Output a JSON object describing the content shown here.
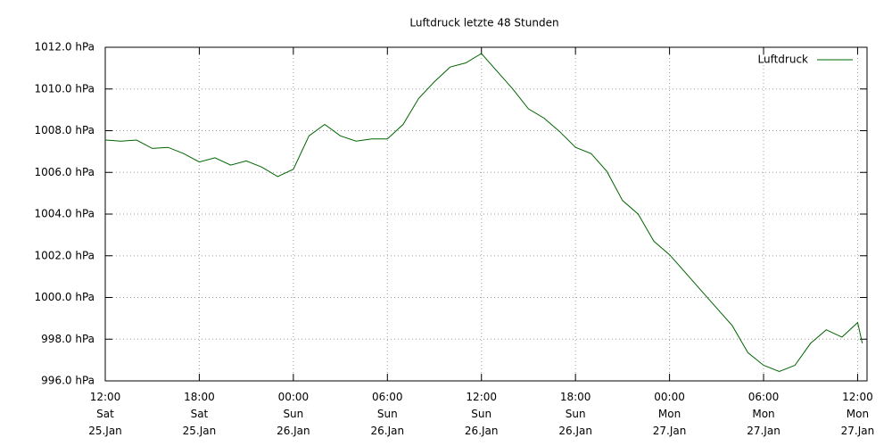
{
  "chart_data": {
    "type": "line",
    "title": "Luftdruck letzte 48 Stunden",
    "x": [
      0,
      1,
      2,
      3,
      4,
      5,
      6,
      7,
      8,
      9,
      10,
      11,
      12,
      13,
      14,
      15,
      16,
      17,
      18,
      19,
      20,
      21,
      22,
      23,
      24,
      25,
      26,
      27,
      28,
      29,
      30,
      31,
      32,
      33,
      34,
      35,
      36,
      37,
      38,
      39,
      40,
      41,
      42,
      43,
      44,
      45,
      46,
      47,
      48,
      48.3
    ],
    "series": [
      {
        "name": "Luftdruck",
        "color": "#006400",
        "values": [
          1007.55,
          1007.5,
          1007.55,
          1007.15,
          1007.2,
          1006.9,
          1006.5,
          1006.7,
          1006.35,
          1006.55,
          1006.25,
          1005.8,
          1006.15,
          1007.75,
          1008.3,
          1007.75,
          1007.5,
          1007.6,
          1007.6,
          1008.3,
          1009.55,
          1010.35,
          1011.05,
          1011.25,
          1011.7,
          1010.85,
          1010.0,
          1009.05,
          1008.6,
          1007.95,
          1007.2,
          1006.9,
          1006.05,
          1004.65,
          1004.0,
          1002.7,
          1002.05,
          1001.2,
          1000.35,
          999.5,
          998.65,
          997.35,
          996.75,
          996.45,
          996.75,
          997.8,
          998.45,
          998.1,
          998.8,
          997.8
        ]
      }
    ],
    "xlim": [
      0,
      48.6
    ],
    "xticks": [
      {
        "value": 0,
        "label": "12:00\nSat\n25.Jan"
      },
      {
        "value": 6,
        "label": "18:00\nSat\n25.Jan"
      },
      {
        "value": 12,
        "label": "00:00\nSun\n26.Jan"
      },
      {
        "value": 18,
        "label": "06:00\nSun\n26.Jan"
      },
      {
        "value": 24,
        "label": "12:00\nSun\n26.Jan"
      },
      {
        "value": 30,
        "label": "18:00\nSun\n26.Jan"
      },
      {
        "value": 36,
        "label": "00:00\nMon\n27.Jan"
      },
      {
        "value": 42,
        "label": "06:00\nMon\n27.Jan"
      },
      {
        "value": 48,
        "label": "12:00\nMon\n27.Jan"
      }
    ],
    "ylim": [
      996,
      1012
    ],
    "yticks": [
      {
        "value": 996,
        "label": "996.0 hPa"
      },
      {
        "value": 998,
        "label": "998.0 hPa"
      },
      {
        "value": 1000,
        "label": "1000.0 hPa"
      },
      {
        "value": 1002,
        "label": "1002.0 hPa"
      },
      {
        "value": 1004,
        "label": "1004.0 hPa"
      },
      {
        "value": 1006,
        "label": "1006.0 hPa"
      },
      {
        "value": 1008,
        "label": "1008.0 hPa"
      },
      {
        "value": 1010,
        "label": "1010.0 hPa"
      },
      {
        "value": 1012,
        "label": "1012.0 hPa"
      }
    ],
    "grid": true,
    "legend": "top-right"
  }
}
